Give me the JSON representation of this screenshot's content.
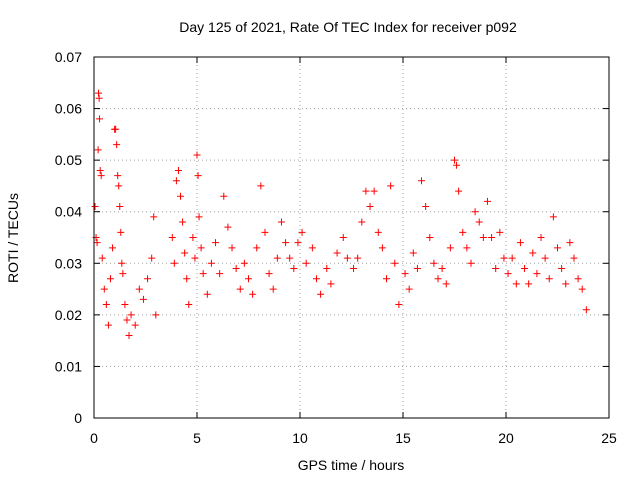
{
  "chart_data": {
    "type": "scatter",
    "title": "Day 125 of 2021, Rate Of TEC Index for receiver p092",
    "xlabel": "GPS time / hours",
    "ylabel": "ROTI / TECUs",
    "xlim": [
      0,
      25
    ],
    "ylim": [
      0,
      0.07
    ],
    "x_ticks": [
      0,
      5,
      10,
      15,
      20,
      25
    ],
    "x_tick_labels": [
      "0",
      "5",
      "10",
      "15",
      "20",
      "25"
    ],
    "y_ticks": [
      0,
      0.01,
      0.02,
      0.03,
      0.04,
      0.05,
      0.06,
      0.07
    ],
    "y_tick_labels": [
      "0",
      "0.01",
      "0.02",
      "0.03",
      "0.04",
      "0.05",
      "0.06",
      "0.07"
    ],
    "grid": true,
    "marker": "+",
    "series": [
      {
        "name": "ROTI",
        "color": "#ff0000",
        "points": [
          [
            0.05,
            0.041
          ],
          [
            0.1,
            0.035
          ],
          [
            0.15,
            0.034
          ],
          [
            0.2,
            0.052
          ],
          [
            0.22,
            0.063
          ],
          [
            0.25,
            0.062
          ],
          [
            0.27,
            0.058
          ],
          [
            0.3,
            0.048
          ],
          [
            0.35,
            0.047
          ],
          [
            0.4,
            0.031
          ],
          [
            0.5,
            0.025
          ],
          [
            0.6,
            0.022
          ],
          [
            0.7,
            0.018
          ],
          [
            0.8,
            0.027
          ],
          [
            0.9,
            0.033
          ],
          [
            1.0,
            0.056
          ],
          [
            1.05,
            0.056
          ],
          [
            1.1,
            0.053
          ],
          [
            1.15,
            0.047
          ],
          [
            1.2,
            0.045
          ],
          [
            1.25,
            0.041
          ],
          [
            1.3,
            0.036
          ],
          [
            1.35,
            0.03
          ],
          [
            1.4,
            0.028
          ],
          [
            1.5,
            0.022
          ],
          [
            1.6,
            0.019
          ],
          [
            1.7,
            0.016
          ],
          [
            1.8,
            0.02
          ],
          [
            2.0,
            0.018
          ],
          [
            2.2,
            0.025
          ],
          [
            2.4,
            0.023
          ],
          [
            2.6,
            0.027
          ],
          [
            2.8,
            0.031
          ],
          [
            2.9,
            0.039
          ],
          [
            3.0,
            0.02
          ],
          [
            3.8,
            0.035
          ],
          [
            3.9,
            0.03
          ],
          [
            4.0,
            0.046
          ],
          [
            4.1,
            0.048
          ],
          [
            4.2,
            0.043
          ],
          [
            4.3,
            0.038
          ],
          [
            4.4,
            0.032
          ],
          [
            4.5,
            0.027
          ],
          [
            4.6,
            0.022
          ],
          [
            4.8,
            0.035
          ],
          [
            4.9,
            0.031
          ],
          [
            5.0,
            0.051
          ],
          [
            5.05,
            0.047
          ],
          [
            5.1,
            0.039
          ],
          [
            5.2,
            0.033
          ],
          [
            5.3,
            0.028
          ],
          [
            5.5,
            0.024
          ],
          [
            5.7,
            0.03
          ],
          [
            5.9,
            0.034
          ],
          [
            6.1,
            0.028
          ],
          [
            6.3,
            0.043
          ],
          [
            6.5,
            0.037
          ],
          [
            6.7,
            0.033
          ],
          [
            6.9,
            0.029
          ],
          [
            7.1,
            0.025
          ],
          [
            7.3,
            0.03
          ],
          [
            7.5,
            0.027
          ],
          [
            7.7,
            0.024
          ],
          [
            7.9,
            0.033
          ],
          [
            8.1,
            0.045
          ],
          [
            8.3,
            0.036
          ],
          [
            8.5,
            0.028
          ],
          [
            8.7,
            0.025
          ],
          [
            8.9,
            0.031
          ],
          [
            9.1,
            0.038
          ],
          [
            9.3,
            0.034
          ],
          [
            9.5,
            0.031
          ],
          [
            9.7,
            0.029
          ],
          [
            9.9,
            0.034
          ],
          [
            10.1,
            0.036
          ],
          [
            10.3,
            0.03
          ],
          [
            10.6,
            0.033
          ],
          [
            10.8,
            0.027
          ],
          [
            11.0,
            0.024
          ],
          [
            11.3,
            0.029
          ],
          [
            11.5,
            0.026
          ],
          [
            11.8,
            0.032
          ],
          [
            12.1,
            0.035
          ],
          [
            12.3,
            0.031
          ],
          [
            12.6,
            0.029
          ],
          [
            12.8,
            0.031
          ],
          [
            13.0,
            0.038
          ],
          [
            13.2,
            0.044
          ],
          [
            13.4,
            0.041
          ],
          [
            13.6,
            0.044
          ],
          [
            13.8,
            0.036
          ],
          [
            14.0,
            0.033
          ],
          [
            14.2,
            0.027
          ],
          [
            14.4,
            0.045
          ],
          [
            14.6,
            0.03
          ],
          [
            14.8,
            0.022
          ],
          [
            15.1,
            0.028
          ],
          [
            15.3,
            0.025
          ],
          [
            15.5,
            0.032
          ],
          [
            15.7,
            0.029
          ],
          [
            15.9,
            0.046
          ],
          [
            16.1,
            0.041
          ],
          [
            16.3,
            0.035
          ],
          [
            16.5,
            0.03
          ],
          [
            16.7,
            0.027
          ],
          [
            16.9,
            0.029
          ],
          [
            17.1,
            0.026
          ],
          [
            17.3,
            0.033
          ],
          [
            17.5,
            0.05
          ],
          [
            17.6,
            0.049
          ],
          [
            17.7,
            0.044
          ],
          [
            17.9,
            0.036
          ],
          [
            18.1,
            0.033
          ],
          [
            18.3,
            0.03
          ],
          [
            18.5,
            0.04
          ],
          [
            18.7,
            0.038
          ],
          [
            18.9,
            0.035
          ],
          [
            19.1,
            0.042
          ],
          [
            19.3,
            0.035
          ],
          [
            19.5,
            0.029
          ],
          [
            19.7,
            0.036
          ],
          [
            19.9,
            0.031
          ],
          [
            20.1,
            0.028
          ],
          [
            20.3,
            0.031
          ],
          [
            20.5,
            0.026
          ],
          [
            20.7,
            0.034
          ],
          [
            20.9,
            0.029
          ],
          [
            21.1,
            0.026
          ],
          [
            21.3,
            0.032
          ],
          [
            21.5,
            0.028
          ],
          [
            21.7,
            0.035
          ],
          [
            21.9,
            0.031
          ],
          [
            22.1,
            0.027
          ],
          [
            22.3,
            0.039
          ],
          [
            22.5,
            0.033
          ],
          [
            22.7,
            0.029
          ],
          [
            22.9,
            0.026
          ],
          [
            23.1,
            0.034
          ],
          [
            23.3,
            0.031
          ],
          [
            23.5,
            0.027
          ],
          [
            23.7,
            0.025
          ],
          [
            23.9,
            0.021
          ]
        ]
      }
    ]
  },
  "colors": {
    "marker": "#ff0000",
    "grid": "#a0a0a0",
    "axes": "#000000"
  }
}
